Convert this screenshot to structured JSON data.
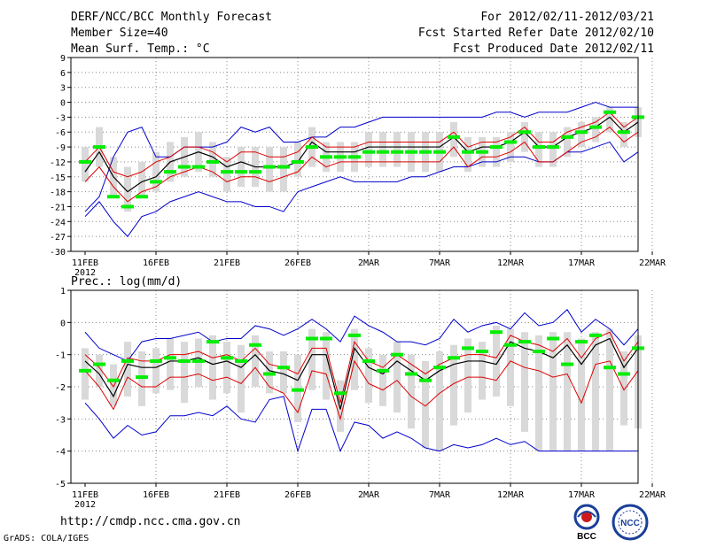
{
  "header": {
    "title": "DERF/NCC/BCC Monthly Forecast",
    "member_size": "Member Size=40",
    "variable": "Mean Surf. Temp.: °C",
    "period": "For 2012/02/11-2012/03/21",
    "start_date": "Fcst Started Refer Date 2012/02/10",
    "produced": "Fcst Produced Date 2012/02/11"
  },
  "footer": {
    "url": "http://cmdp.ncc.cma.gov.cn",
    "credit": "GrADS: COLA/IGES",
    "logo_left": "BCC",
    "logo_right": "NCC"
  },
  "colors": {
    "box": "#d9d9d9",
    "median": "#00ee00",
    "mean": "#000000",
    "spread": "#dd0000",
    "extreme": "#0000cc",
    "grid": "#888888"
  },
  "chart_data": [
    {
      "type": "line",
      "title": "Mean Surf. Temp.: °C",
      "x_tick_labels": [
        "11FEB",
        "16FEB",
        "21FEB",
        "26FEB",
        "2MAR",
        "7MAR",
        "12MAR",
        "17MAR",
        "22MAR"
      ],
      "x_year_label": "2012",
      "ylim": [
        -30,
        9
      ],
      "y_ticks": [
        -30,
        -27,
        -24,
        -21,
        -18,
        -15,
        -12,
        -9,
        -6,
        -3,
        0,
        3,
        6,
        9
      ],
      "days": 40,
      "series": [
        {
          "name": "ensemble max",
          "values": [
            -22,
            -19,
            -11,
            -6,
            -5,
            -11,
            -11,
            -9,
            -9,
            -9,
            -8,
            -5,
            -6,
            -5,
            -8,
            -8,
            -7,
            -7,
            -5,
            -5,
            -4,
            -3,
            -3,
            -3,
            -3,
            -3,
            -3,
            -3,
            -3,
            -2,
            -2,
            -3,
            -2,
            -2,
            -2,
            -1,
            0,
            -1,
            -1,
            -1
          ]
        },
        {
          "name": "upper spread",
          "values": [
            -12,
            -9,
            -14,
            -15,
            -14,
            -12,
            -11,
            -9,
            -9,
            -10,
            -12,
            -10,
            -10,
            -11,
            -11,
            -10,
            -7,
            -9,
            -9,
            -9,
            -8,
            -8,
            -8,
            -8,
            -8,
            -8,
            -6,
            -9,
            -8,
            -8,
            -7,
            -5,
            -8,
            -8,
            -6,
            -5,
            -4,
            -2,
            -5,
            -3
          ]
        },
        {
          "name": "ensemble mean",
          "values": [
            -14,
            -10,
            -15,
            -18,
            -16,
            -15,
            -12,
            -11,
            -10,
            -11,
            -13,
            -12,
            -13,
            -13,
            -13,
            -12,
            -8,
            -10,
            -10,
            -10,
            -9,
            -9,
            -9,
            -9,
            -9,
            -9,
            -7,
            -10,
            -9,
            -9,
            -8,
            -6,
            -9,
            -9,
            -7,
            -6,
            -5,
            -3,
            -6,
            -4
          ]
        },
        {
          "name": "lower spread",
          "values": [
            -16,
            -13,
            -17,
            -20,
            -18,
            -17,
            -15,
            -14,
            -13,
            -14,
            -16,
            -15,
            -15,
            -16,
            -15,
            -14,
            -11,
            -13,
            -12,
            -12,
            -12,
            -12,
            -12,
            -12,
            -12,
            -12,
            -9,
            -13,
            -11,
            -11,
            -10,
            -8,
            -12,
            -12,
            -10,
            -8,
            -7,
            -5,
            -8,
            -6
          ]
        },
        {
          "name": "ensemble min",
          "values": [
            -23,
            -20,
            -24,
            -27,
            -23,
            -22,
            -20,
            -19,
            -18,
            -19,
            -20,
            -20,
            -21,
            -21,
            -22,
            -18,
            -17,
            -16,
            -15,
            -16,
            -16,
            -16,
            -16,
            -15,
            -15,
            -14,
            -13,
            -13,
            -12,
            -12,
            -11,
            -11,
            -12,
            -12,
            -10,
            -10,
            -9,
            -8,
            -12,
            -10
          ]
        },
        {
          "name": "median",
          "values": [
            -12,
            -9,
            -19,
            -21,
            -19,
            -16,
            -14,
            -13,
            -13,
            -12,
            -14,
            -14,
            -14,
            -13,
            -13,
            -12,
            -9,
            -11,
            -11,
            -11,
            -10,
            -10,
            -10,
            -10,
            -10,
            -10,
            -7,
            -10,
            -10,
            -9,
            -8,
            -6,
            -9,
            -9,
            -7,
            -6,
            -5,
            -2,
            -6,
            -3
          ]
        },
        {
          "name": "box top",
          "values": [
            -9,
            -5,
            -11,
            -13,
            -12,
            -10,
            -8,
            -7,
            -6,
            -8,
            -11,
            -9,
            -9,
            -9,
            -9,
            -8,
            -5,
            -8,
            -8,
            -8,
            -6,
            -6,
            -6,
            -6,
            -6,
            -6,
            -4,
            -7,
            -7,
            -7,
            -6,
            -4,
            -6,
            -6,
            -5,
            -4,
            -3,
            -1,
            -4,
            -1
          ]
        },
        {
          "name": "box bottom",
          "values": [
            -16,
            -13,
            -19,
            -22,
            -19,
            -18,
            -16,
            -15,
            -14,
            -15,
            -18,
            -17,
            -17,
            -18,
            -18,
            -15,
            -13,
            -14,
            -14,
            -14,
            -13,
            -13,
            -13,
            -14,
            -14,
            -14,
            -11,
            -14,
            -13,
            -13,
            -12,
            -10,
            -13,
            -13,
            -11,
            -9,
            -8,
            -6,
            -9,
            -7
          ]
        }
      ]
    },
    {
      "type": "line",
      "title": "Prec.: log(mm/d)",
      "x_tick_labels": [
        "11FEB",
        "16FEB",
        "21FEB",
        "26FEB",
        "2MAR",
        "7MAR",
        "12MAR",
        "17MAR",
        "22MAR"
      ],
      "x_year_label": "2012",
      "ylim": [
        -5,
        1
      ],
      "y_ticks": [
        -5,
        -4,
        -3,
        -2,
        -1,
        0,
        1
      ],
      "days": 40,
      "series": [
        {
          "name": "ensemble max",
          "values": [
            -0.3,
            -0.8,
            -1.0,
            -1.2,
            -0.6,
            -0.5,
            -0.5,
            -0.4,
            -0.3,
            -0.6,
            -0.5,
            -0.5,
            -0.1,
            -0.2,
            -0.4,
            -0.2,
            0.1,
            -0.2,
            -0.6,
            0.2,
            -0.1,
            -0.3,
            -0.6,
            -0.6,
            -0.7,
            -0.5,
            0.1,
            -0.3,
            -0.1,
            0.0,
            -0.2,
            0.3,
            -0.1,
            0.0,
            0.4,
            -0.3,
            0.1,
            -0.2,
            -0.7,
            -0.2
          ]
        },
        {
          "name": "upper spread",
          "values": [
            -1.0,
            -1.4,
            -2.0,
            -1.1,
            -1.2,
            -1.2,
            -1.0,
            -1.0,
            -0.9,
            -1.1,
            -1.0,
            -1.2,
            -0.8,
            -1.3,
            -1.4,
            -1.6,
            -0.8,
            -0.8,
            -2.5,
            -0.6,
            -1.2,
            -1.4,
            -1.0,
            -1.3,
            -1.6,
            -1.3,
            -1.1,
            -1.0,
            -1.0,
            -1.1,
            -0.4,
            -0.6,
            -0.7,
            -0.9,
            -0.5,
            -1.1,
            -0.5,
            -0.3,
            -1.2,
            -0.6
          ]
        },
        {
          "name": "ensemble mean",
          "values": [
            -1.2,
            -1.6,
            -2.3,
            -1.3,
            -1.4,
            -1.4,
            -1.2,
            -1.2,
            -1.1,
            -1.3,
            -1.2,
            -1.4,
            -1.0,
            -1.5,
            -1.6,
            -1.8,
            -1.0,
            -1.0,
            -2.7,
            -0.8,
            -1.4,
            -1.6,
            -1.2,
            -1.5,
            -1.8,
            -1.5,
            -1.3,
            -1.2,
            -1.2,
            -1.3,
            -0.6,
            -0.8,
            -0.9,
            -1.1,
            -0.7,
            -1.3,
            -0.7,
            -0.5,
            -1.4,
            -0.8
          ]
        },
        {
          "name": "lower spread",
          "values": [
            -1.5,
            -2.0,
            -2.7,
            -1.7,
            -2.0,
            -2.0,
            -1.7,
            -1.7,
            -1.6,
            -1.8,
            -1.7,
            -1.9,
            -1.4,
            -2.0,
            -2.2,
            -2.8,
            -1.5,
            -1.6,
            -3.0,
            -1.2,
            -1.9,
            -2.1,
            -1.8,
            -2.3,
            -2.6,
            -2.2,
            -1.9,
            -1.7,
            -1.7,
            -1.8,
            -1.2,
            -1.4,
            -1.5,
            -1.7,
            -1.6,
            -2.5,
            -1.3,
            -1.2,
            -2.1,
            -1.5
          ]
        },
        {
          "name": "ensemble min",
          "values": [
            -2.5,
            -3.0,
            -3.6,
            -3.2,
            -3.5,
            -3.4,
            -2.9,
            -2.9,
            -2.8,
            -2.9,
            -2.6,
            -3.0,
            -3.1,
            -2.4,
            -2.3,
            -4.0,
            -2.7,
            -2.7,
            -4.0,
            -3.1,
            -3.2,
            -3.6,
            -3.4,
            -3.6,
            -3.9,
            -4.0,
            -3.8,
            -3.9,
            -3.8,
            -3.6,
            -3.8,
            -3.7,
            -4.0,
            -4.0,
            -4.0,
            -4.0,
            -4.0,
            -4.0,
            -4.0,
            -4.0
          ]
        },
        {
          "name": "median",
          "values": [
            -1.5,
            -1.3,
            -1.8,
            -1.2,
            -1.7,
            -1.2,
            -1.1,
            -1.2,
            -1.2,
            -0.6,
            -1.1,
            -1.2,
            -0.7,
            -1.6,
            -1.4,
            -2.1,
            -0.5,
            -0.5,
            -2.2,
            -0.4,
            -1.2,
            -1.5,
            -1.0,
            -1.6,
            -1.8,
            -1.4,
            -1.1,
            -0.8,
            -0.9,
            -0.3,
            -0.7,
            -0.6,
            -0.9,
            -0.5,
            -1.3,
            -0.6,
            -0.4,
            -1.4,
            -1.6,
            -0.8
          ]
        },
        {
          "name": "box top",
          "values": [
            -0.8,
            -1.0,
            -1.3,
            -0.6,
            -0.9,
            -0.8,
            -0.5,
            -0.6,
            -0.5,
            -0.4,
            -0.6,
            -0.7,
            -0.4,
            -0.9,
            -0.9,
            -1.0,
            -0.2,
            -0.3,
            -1.8,
            -0.2,
            -0.8,
            -1.0,
            -0.6,
            -1.0,
            -1.2,
            -0.9,
            -0.7,
            -0.5,
            -0.6,
            -0.1,
            -0.2,
            -0.3,
            -0.4,
            -0.3,
            -0.3,
            -0.5,
            -0.3,
            -0.2,
            -0.9,
            -0.4
          ]
        },
        {
          "name": "box bottom",
          "values": [
            -2.4,
            -2.0,
            -2.6,
            -2.3,
            -2.6,
            -2.2,
            -2.1,
            -2.5,
            -2.0,
            -2.4,
            -2.2,
            -2.8,
            -2.0,
            -2.2,
            -2.2,
            -3.1,
            -2.1,
            -2.4,
            -3.4,
            -2.1,
            -2.5,
            -2.6,
            -2.8,
            -3.3,
            -3.9,
            -4.0,
            -3.2,
            -2.8,
            -2.4,
            -2.3,
            -2.6,
            -3.4,
            -4.0,
            -4.0,
            -4.0,
            -4.0,
            -4.0,
            -4.0,
            -3.2,
            -3.3
          ]
        }
      ]
    }
  ]
}
